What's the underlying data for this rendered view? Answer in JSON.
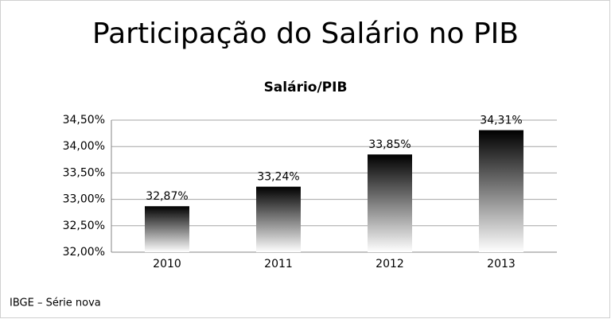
{
  "chart_data": {
    "type": "bar",
    "title": "Participação do Salário no PIB",
    "subtitle": "Salário/PIB",
    "source": "IBGE – Série nova",
    "categories": [
      "2010",
      "2011",
      "2012",
      "2013"
    ],
    "values": [
      32.87,
      33.24,
      33.85,
      34.31
    ],
    "value_labels": [
      "32,87%",
      "33,24%",
      "33,85%",
      "34,31%"
    ],
    "color": "#000000",
    "ylim": [
      32,
      34.5
    ],
    "yticks": [
      {
        "value": 32,
        "label": "32,00%"
      },
      {
        "value": 32.5,
        "label": "32,50%"
      },
      {
        "value": 33,
        "label": "33,00%"
      },
      {
        "value": 33.5,
        "label": "33,50%"
      },
      {
        "value": 34,
        "label": "34,00%"
      },
      {
        "value": 34.5,
        "label": "34,50%"
      }
    ],
    "grid": true
  }
}
